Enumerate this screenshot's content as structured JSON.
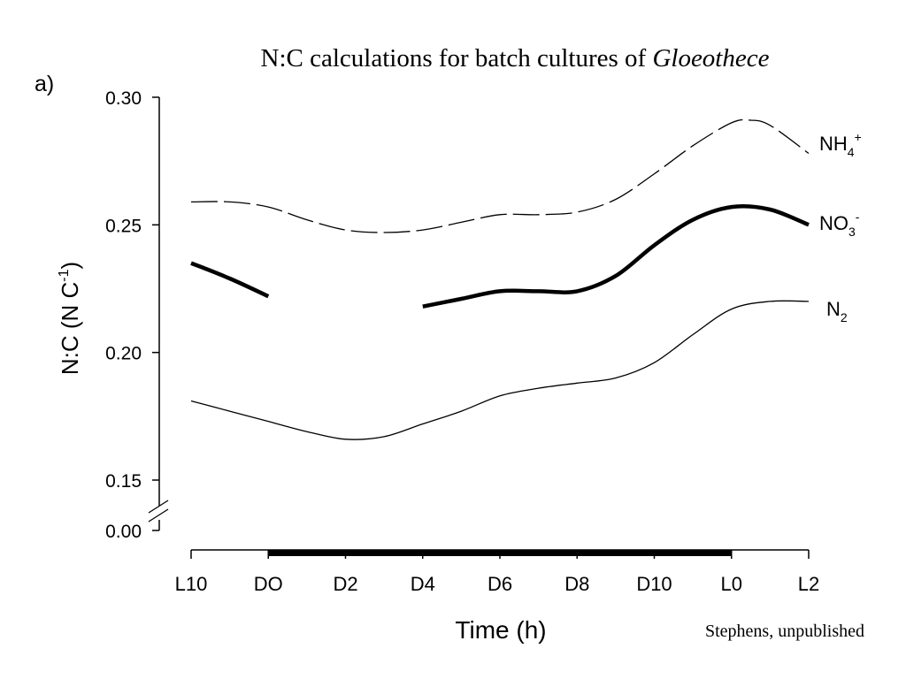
{
  "figure": {
    "panel_label": "a)",
    "credit": "Stephens, unpublished"
  },
  "chart_data": {
    "type": "line",
    "title": {
      "prefix": "N:C calculations for batch cultures of ",
      "italic": "Gloeothece"
    },
    "xlabel": "Time (h)",
    "ylabel": {
      "base": "N:C (N C",
      "sup": "-1",
      "end": ")"
    },
    "categories": [
      "L10",
      "DO",
      "D2",
      "D4",
      "D6",
      "D8",
      "D10",
      "L0",
      "L2"
    ],
    "y_ticks": [
      0.3,
      0.25,
      0.2,
      0.15
    ],
    "y_tick_labels": [
      "0.30",
      "0.25",
      "0.20",
      "0.15"
    ],
    "y_break_label": "0.00",
    "ylim": [
      0.15,
      0.3
    ],
    "grid": false,
    "dark_period": {
      "from": "DO",
      "to": "L0"
    },
    "series": [
      {
        "name": "NH4+",
        "label_base": "NH",
        "label_sub": "4",
        "label_sup": "+",
        "style": "dashed",
        "segments": [
          [
            [
              0,
              0.259
            ],
            [
              0.5,
              0.259
            ],
            [
              1,
              0.257
            ],
            [
              1.5,
              0.252
            ],
            [
              2,
              0.248
            ],
            [
              2.5,
              0.247
            ],
            [
              3,
              0.248
            ],
            [
              3.5,
              0.251
            ],
            [
              4,
              0.254
            ],
            [
              4.5,
              0.254
            ],
            [
              5,
              0.255
            ],
            [
              5.5,
              0.26
            ],
            [
              6,
              0.27
            ],
            [
              6.5,
              0.281
            ],
            [
              7,
              0.29
            ],
            [
              7.25,
              0.291
            ],
            [
              7.5,
              0.289
            ],
            [
              8,
              0.278
            ]
          ]
        ]
      },
      {
        "name": "NO3-",
        "label_base": "NO",
        "label_sub": "3",
        "label_sup": "-",
        "style": "thick",
        "segments": [
          [
            [
              0,
              0.235
            ],
            [
              0.5,
              0.229
            ],
            [
              1,
              0.222
            ]
          ],
          [
            [
              3,
              0.218
            ],
            [
              3.5,
              0.221
            ],
            [
              4,
              0.224
            ],
            [
              4.5,
              0.224
            ],
            [
              5,
              0.224
            ],
            [
              5.5,
              0.23
            ],
            [
              6,
              0.242
            ],
            [
              6.5,
              0.252
            ],
            [
              7,
              0.257
            ],
            [
              7.5,
              0.256
            ],
            [
              8,
              0.25
            ]
          ]
        ]
      },
      {
        "name": "N2",
        "label_base": "N",
        "label_sub": "2",
        "label_sup": "",
        "style": "thin",
        "segments": [
          [
            [
              0,
              0.181
            ],
            [
              0.5,
              0.177
            ],
            [
              1,
              0.173
            ],
            [
              1.5,
              0.169
            ],
            [
              2,
              0.166
            ],
            [
              2.5,
              0.167
            ],
            [
              3,
              0.172
            ],
            [
              3.5,
              0.177
            ],
            [
              4,
              0.183
            ],
            [
              4.5,
              0.186
            ],
            [
              5,
              0.188
            ],
            [
              5.5,
              0.19
            ],
            [
              6,
              0.196
            ],
            [
              6.5,
              0.207
            ],
            [
              7,
              0.217
            ],
            [
              7.5,
              0.22
            ],
            [
              8,
              0.22
            ]
          ]
        ]
      }
    ]
  }
}
